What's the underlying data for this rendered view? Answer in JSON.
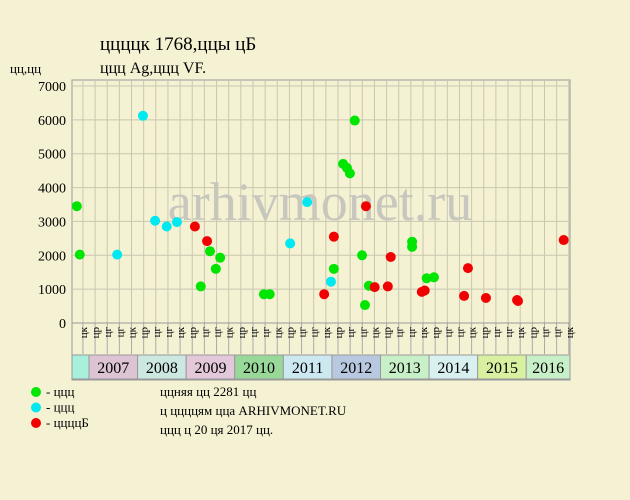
{
  "chart_data": {
    "type": "scatter",
    "title": "ццццк 1768,ццы цБ",
    "subtitle": "ццц Ag,ццц VF.",
    "y_label": "цц,цц",
    "watermark": "arhivmonet.ru",
    "xlim": [
      2006.65,
      2016.9
    ],
    "ylim": [
      0,
      7000
    ],
    "yticks": [
      0,
      1000,
      2000,
      3000,
      4000,
      5000,
      6000,
      7000
    ],
    "grid": true,
    "xticks": [
      {
        "value": 2006.875,
        "label": "цк"
      },
      {
        "value": 2007.125,
        "label": "цр"
      },
      {
        "value": 2007.375,
        "label": "цг"
      },
      {
        "value": 2007.625,
        "label": "цг"
      },
      {
        "value": 2007.875,
        "label": "цк"
      },
      {
        "value": 2008.125,
        "label": "цр"
      },
      {
        "value": 2008.375,
        "label": "цг"
      },
      {
        "value": 2008.625,
        "label": "цг"
      },
      {
        "value": 2008.875,
        "label": "цк"
      },
      {
        "value": 2009.125,
        "label": "цр"
      },
      {
        "value": 2009.375,
        "label": "цг"
      },
      {
        "value": 2009.625,
        "label": "цг"
      },
      {
        "value": 2009.875,
        "label": "цк"
      },
      {
        "value": 2010.125,
        "label": "цр"
      },
      {
        "value": 2010.375,
        "label": "цг"
      },
      {
        "value": 2010.625,
        "label": "цг"
      },
      {
        "value": 2010.875,
        "label": "цк"
      },
      {
        "value": 2011.125,
        "label": "цр"
      },
      {
        "value": 2011.375,
        "label": "цг"
      },
      {
        "value": 2011.625,
        "label": "цг"
      },
      {
        "value": 2011.875,
        "label": "цк"
      },
      {
        "value": 2012.125,
        "label": "цр"
      },
      {
        "value": 2012.375,
        "label": "цг"
      },
      {
        "value": 2012.625,
        "label": "цг"
      },
      {
        "value": 2012.875,
        "label": "цк"
      },
      {
        "value": 2013.125,
        "label": "цр"
      },
      {
        "value": 2013.375,
        "label": "цг"
      },
      {
        "value": 2013.625,
        "label": "цг"
      },
      {
        "value": 2013.875,
        "label": "цк"
      },
      {
        "value": 2014.125,
        "label": "цр"
      },
      {
        "value": 2014.375,
        "label": "цг"
      },
      {
        "value": 2014.625,
        "label": "цг"
      },
      {
        "value": 2014.875,
        "label": "цк"
      },
      {
        "value": 2015.125,
        "label": "цр"
      },
      {
        "value": 2015.375,
        "label": "цг"
      },
      {
        "value": 2015.625,
        "label": "цг"
      },
      {
        "value": 2015.875,
        "label": "цк"
      },
      {
        "value": 2016.125,
        "label": "цр"
      },
      {
        "value": 2016.375,
        "label": "цг"
      },
      {
        "value": 2016.625,
        "label": "цг"
      },
      {
        "value": 2016.875,
        "label": "цк"
      }
    ],
    "years": [
      {
        "value": 2006,
        "label": null,
        "color": "#a8f0dc"
      },
      {
        "value": 2007,
        "label": "2007",
        "color": "#dcc4d4"
      },
      {
        "value": 2008,
        "label": "2008",
        "color": "#cce8e0"
      },
      {
        "value": 2009,
        "label": "2009",
        "color": "#e2c8d8"
      },
      {
        "value": 2010,
        "label": "2010",
        "color": "#98d898"
      },
      {
        "value": 2011,
        "label": "2011",
        "color": "#cce8f0"
      },
      {
        "value": 2012,
        "label": "2012",
        "color": "#b8c8e0"
      },
      {
        "value": 2013,
        "label": "2013",
        "color": "#c8f0c8"
      },
      {
        "value": 2014,
        "label": "2014",
        "color": "#d8f0f0"
      },
      {
        "value": 2015,
        "label": "2015",
        "color": "#d8f0a0"
      },
      {
        "value": 2016,
        "label": "2016",
        "color": "#c8f0c8"
      }
    ],
    "series": [
      {
        "name": "- ццц",
        "color": "#00e600",
        "x": [
          2006.75,
          2006.81,
          2009.3,
          2009.49,
          2009.61,
          2009.7,
          2010.6,
          2010.72,
          2012.04,
          2012.23,
          2012.31,
          2012.37,
          2012.47,
          2012.62,
          2012.68,
          2012.76,
          2013.65,
          2013.65,
          2013.95,
          2014.1
        ],
        "values": [
          3450,
          2020,
          1080,
          2120,
          1600,
          1930,
          850,
          850,
          1600,
          4700,
          4580,
          4420,
          5980,
          2000,
          530,
          1100,
          2400,
          2250,
          1320,
          1350
        ]
      },
      {
        "name": "- ццц",
        "color": "#00e8f0",
        "x": [
          2007.58,
          2008.11,
          2008.36,
          2008.6,
          2008.81,
          2011.14,
          2011.49,
          2011.98
        ],
        "values": [
          2020,
          6120,
          3020,
          2850,
          2980,
          2350,
          3570,
          1220
        ]
      },
      {
        "name": "- ццццБ",
        "color": "#f00000",
        "x": [
          2009.18,
          2009.43,
          2011.84,
          2012.04,
          2012.7,
          2012.88,
          2013.15,
          2013.21,
          2013.85,
          2013.91,
          2014.72,
          2014.8,
          2015.17,
          2015.81,
          2015.83,
          2016.77
        ],
        "values": [
          2850,
          2420,
          850,
          2550,
          3450,
          1060,
          1080,
          1950,
          920,
          960,
          800,
          1620,
          740,
          680,
          650,
          2450
        ]
      }
    ],
    "notes": [
      "ццняя цц 2281 цц",
      "ц ццццям цца ARHIVMONET.RU",
      "ццц ц 20 ця 2017 цц."
    ]
  }
}
